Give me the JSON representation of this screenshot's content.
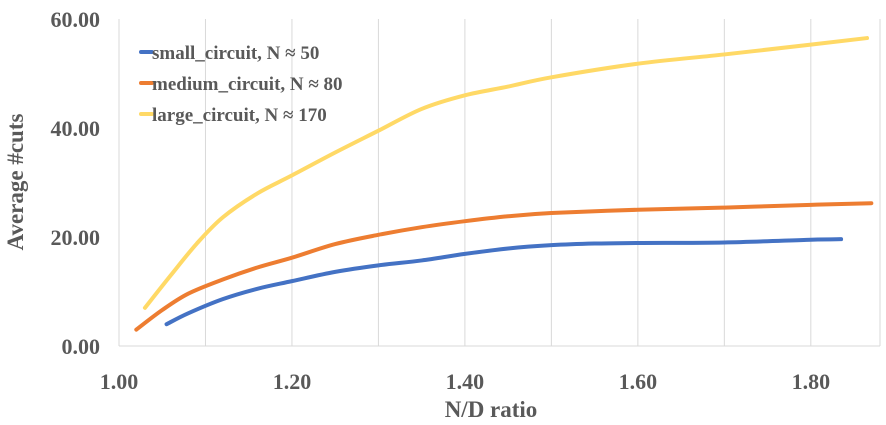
{
  "chart_data": {
    "type": "line",
    "xlabel": "N/D ratio",
    "ylabel": "Average #cuts",
    "xlim": [
      1.0,
      1.88
    ],
    "ylim": [
      0,
      60
    ],
    "xticks": [
      "1.00",
      "1.20",
      "1.40",
      "1.60",
      "1.80"
    ],
    "yticks": [
      "0.00",
      "20.00",
      "40.00",
      "60.00"
    ],
    "grid": "vertical",
    "legend_position": "top-left",
    "series": [
      {
        "name": "small_circuit, N ≈ 50",
        "color": "#4472c4",
        "x": [
          1.055,
          1.08,
          1.12,
          1.16,
          1.2,
          1.25,
          1.3,
          1.35,
          1.4,
          1.45,
          1.5,
          1.55,
          1.6,
          1.7,
          1.8,
          1.835
        ],
        "y": [
          4.0,
          6.0,
          8.6,
          10.5,
          11.9,
          13.6,
          14.8,
          15.7,
          16.9,
          17.9,
          18.5,
          18.8,
          18.9,
          19.0,
          19.5,
          19.6
        ]
      },
      {
        "name": "medium_circuit, N ≈ 80",
        "color": "#ed7d31",
        "x": [
          1.02,
          1.05,
          1.08,
          1.12,
          1.16,
          1.2,
          1.25,
          1.3,
          1.35,
          1.4,
          1.45,
          1.5,
          1.6,
          1.7,
          1.8,
          1.87
        ],
        "y": [
          3.0,
          6.6,
          9.6,
          12.2,
          14.4,
          16.2,
          18.7,
          20.4,
          21.8,
          22.9,
          23.8,
          24.4,
          25.0,
          25.4,
          25.9,
          26.2
        ]
      },
      {
        "name": "large_circuit, N ≈ 170",
        "color": "#ffd966",
        "x": [
          1.03,
          1.06,
          1.09,
          1.12,
          1.16,
          1.2,
          1.25,
          1.3,
          1.35,
          1.4,
          1.45,
          1.5,
          1.6,
          1.7,
          1.8,
          1.865
        ],
        "y": [
          7.0,
          13.0,
          18.8,
          23.6,
          28.0,
          31.3,
          35.5,
          39.5,
          43.5,
          46.0,
          47.6,
          49.3,
          51.8,
          53.5,
          55.3,
          56.5
        ]
      }
    ]
  }
}
